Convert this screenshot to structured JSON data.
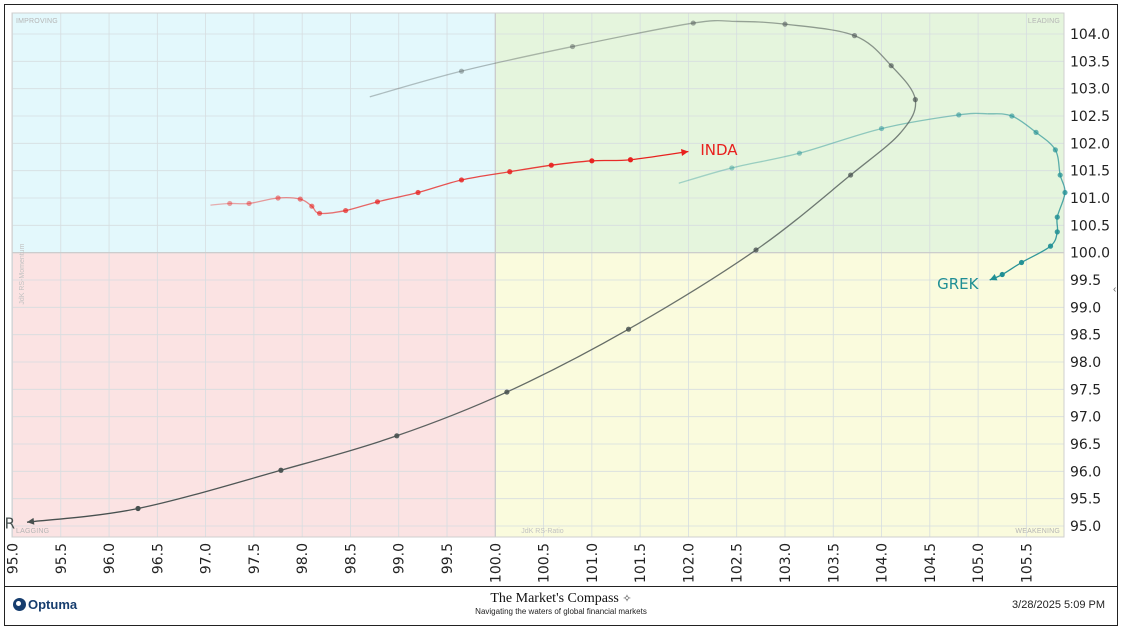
{
  "chart_data": {
    "type": "line",
    "subtype": "relative-rotation-graph",
    "x_axis": {
      "title": "JdK RS-Ratio",
      "range": [
        95.0,
        105.9
      ],
      "ticks": [
        "95.0",
        "95.5",
        "96.0",
        "96.5",
        "97.0",
        "97.5",
        "98.0",
        "98.5",
        "99.0",
        "99.5",
        "100.0",
        "100.5",
        "101.0",
        "101.5",
        "102.0",
        "102.5",
        "103.0",
        "103.5",
        "104.0",
        "104.5",
        "105.0",
        "105.5"
      ]
    },
    "y_axis": {
      "title": "JdK RS-Momentum",
      "range": [
        94.8,
        105.2
      ],
      "position": "right",
      "ticks": [
        "95.0",
        "95.5",
        "96.0",
        "96.5",
        "97.0",
        "97.5",
        "98.0",
        "98.5",
        "99.0",
        "99.5",
        "100.0",
        "100.5",
        "101.0",
        "101.5",
        "102.0",
        "102.5",
        "103.0",
        "103.5",
        "104.0"
      ]
    },
    "grid": true,
    "quadrants": [
      {
        "name": "IMPROVING",
        "position": "top-left",
        "color": "#e3f8fc"
      },
      {
        "name": "LEADING",
        "position": "top-right",
        "color": "#e5f5dd"
      },
      {
        "name": "LAGGING",
        "position": "bottom-left",
        "color": "#fbe3e3"
      },
      {
        "name": "WEAKENING",
        "position": "bottom-right",
        "color": "#fafbdd"
      }
    ],
    "series": [
      {
        "name": "INDA",
        "color": "#e8201e",
        "points": [
          [
            97.05,
            100.87
          ],
          [
            97.25,
            100.9
          ],
          [
            97.45,
            100.9
          ],
          [
            97.75,
            101.0
          ],
          [
            97.98,
            100.98
          ],
          [
            98.1,
            100.85
          ],
          [
            98.18,
            100.72
          ],
          [
            98.45,
            100.77
          ],
          [
            98.78,
            100.93
          ],
          [
            99.2,
            101.1
          ],
          [
            99.65,
            101.33
          ],
          [
            100.15,
            101.48
          ],
          [
            100.58,
            101.6
          ],
          [
            101.0,
            101.68
          ],
          [
            101.4,
            101.7
          ],
          [
            102.0,
            101.85
          ]
        ],
        "markers": [
          [
            97.25,
            100.9
          ],
          [
            97.45,
            100.9
          ],
          [
            97.75,
            101.0
          ],
          [
            97.98,
            100.98
          ],
          [
            98.1,
            100.85
          ],
          [
            98.18,
            100.72
          ],
          [
            98.45,
            100.77
          ],
          [
            98.78,
            100.93
          ],
          [
            99.2,
            101.1
          ],
          [
            99.65,
            101.33
          ],
          [
            100.15,
            101.48
          ],
          [
            100.58,
            101.6
          ],
          [
            101.0,
            101.68
          ],
          [
            101.4,
            101.7
          ]
        ]
      },
      {
        "name": "GREK",
        "color": "#1f8f94",
        "points": [
          [
            101.9,
            101.27
          ],
          [
            102.45,
            101.55
          ],
          [
            103.15,
            101.82
          ],
          [
            104.0,
            102.27
          ],
          [
            104.8,
            102.52
          ],
          [
            105.1,
            102.54
          ],
          [
            105.35,
            102.5
          ],
          [
            105.6,
            102.2
          ],
          [
            105.8,
            101.88
          ],
          [
            105.85,
            101.42
          ],
          [
            105.9,
            101.1
          ],
          [
            105.82,
            100.65
          ],
          [
            105.82,
            100.38
          ],
          [
            105.75,
            100.12
          ],
          [
            105.45,
            99.82
          ],
          [
            105.25,
            99.6
          ],
          [
            105.12,
            99.5
          ]
        ],
        "markers": [
          [
            102.45,
            101.55
          ],
          [
            103.15,
            101.82
          ],
          [
            104.0,
            102.27
          ],
          [
            104.8,
            102.52
          ],
          [
            105.35,
            102.5
          ],
          [
            105.6,
            102.2
          ],
          [
            105.8,
            101.88
          ],
          [
            105.85,
            101.42
          ],
          [
            105.9,
            101.1
          ],
          [
            105.82,
            100.65
          ],
          [
            105.82,
            100.38
          ],
          [
            105.75,
            100.12
          ],
          [
            105.45,
            99.82
          ],
          [
            105.25,
            99.6
          ]
        ]
      },
      {
        "name": "TUR",
        "color": "#47504f",
        "points": [
          [
            98.7,
            102.85
          ],
          [
            99.65,
            103.32
          ],
          [
            100.8,
            103.77
          ],
          [
            102.05,
            104.2
          ],
          [
            102.5,
            104.23
          ],
          [
            103.0,
            104.18
          ],
          [
            103.72,
            103.97
          ],
          [
            104.1,
            103.42
          ],
          [
            104.35,
            102.8
          ],
          [
            104.2,
            102.2
          ],
          [
            103.68,
            101.42
          ],
          [
            102.7,
            100.05
          ],
          [
            101.38,
            98.6
          ],
          [
            100.12,
            97.45
          ],
          [
            98.98,
            96.65
          ],
          [
            97.78,
            96.02
          ],
          [
            96.3,
            95.32
          ],
          [
            95.15,
            95.07
          ]
        ],
        "markers": [
          [
            99.65,
            103.32
          ],
          [
            100.8,
            103.77
          ],
          [
            102.05,
            104.2
          ],
          [
            103.0,
            104.18
          ],
          [
            103.72,
            103.97
          ],
          [
            104.1,
            103.42
          ],
          [
            104.35,
            102.8
          ],
          [
            103.68,
            101.42
          ],
          [
            102.7,
            100.05
          ],
          [
            101.38,
            98.6
          ],
          [
            100.12,
            97.45
          ],
          [
            98.98,
            96.65
          ],
          [
            97.78,
            96.02
          ],
          [
            96.3,
            95.32
          ]
        ]
      }
    ]
  },
  "footer": {
    "logo_text": "Optuma",
    "brand_title": "The Market's Compass",
    "brand_subtitle": "Navigating the waters of global financial markets",
    "timestamp": "3/28/2025 5:09 PM"
  }
}
